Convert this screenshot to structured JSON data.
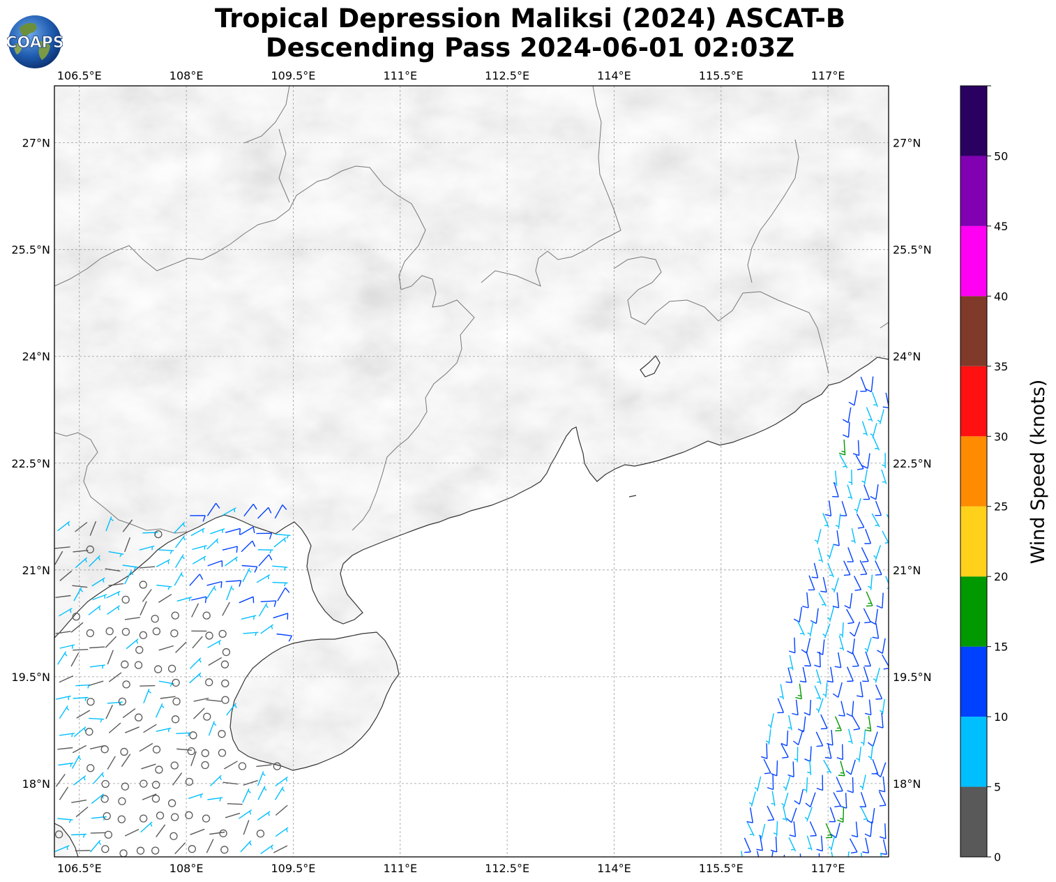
{
  "title": {
    "line1": "Tropical Depression Maliksi (2024) ASCAT-B",
    "line2": "Descending Pass 2024-06-01 02:03Z"
  },
  "logo": {
    "text": "COAPS",
    "icon": "globe-logo-icon"
  },
  "map": {
    "lon_range": [
      106.15,
      117.85
    ],
    "lat_range": [
      16.97,
      27.8
    ],
    "lon_ticks": [
      "106.5°E",
      "108°E",
      "109.5°E",
      "111°E",
      "112.5°E",
      "114°E",
      "115.5°E",
      "117°E"
    ],
    "lon_tick_values": [
      106.5,
      108,
      109.5,
      111,
      112.5,
      114,
      115.5,
      117
    ],
    "lat_ticks": [
      "18°N",
      "19.5°N",
      "21°N",
      "22.5°N",
      "24°N",
      "25.5°N",
      "27°N"
    ],
    "lat_tick_values": [
      18,
      19.5,
      21,
      22.5,
      24,
      25.5,
      27
    ],
    "grid": "dashed",
    "land_shading": "grayscale terrain",
    "coastline_color": "#333333"
  },
  "colorbar": {
    "label": "Wind Speed (knots)",
    "tick_labels": [
      "0",
      "5",
      "10",
      "15",
      "20",
      "25",
      "30",
      "35",
      "40",
      "45",
      "50"
    ],
    "bins": [
      {
        "min": 0,
        "max": 5,
        "color": "#595959"
      },
      {
        "min": 5,
        "max": 10,
        "color": "#00bfff"
      },
      {
        "min": 10,
        "max": 15,
        "color": "#0040ff"
      },
      {
        "min": 15,
        "max": 20,
        "color": "#009900"
      },
      {
        "min": 20,
        "max": 25,
        "color": "#ffd11a"
      },
      {
        "min": 25,
        "max": 30,
        "color": "#ff8c00"
      },
      {
        "min": 30,
        "max": 35,
        "color": "#ff1111"
      },
      {
        "min": 35,
        "max": 40,
        "color": "#7f3a2a"
      },
      {
        "min": 40,
        "max": 45,
        "color": "#ff00f2"
      },
      {
        "min": 45,
        "max": 50,
        "color": "#8000b2"
      },
      {
        "min": 50,
        "max": 55,
        "color": "#2a0060"
      }
    ]
  }
}
